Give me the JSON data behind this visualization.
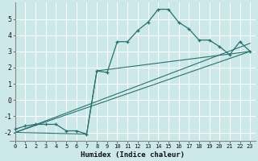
{
  "xlabel": "Humidex (Indice chaleur)",
  "bg_color": "#cce8e8",
  "line_color": "#2a7070",
  "grid_color": "#ffffff",
  "xlim": [
    -0.5,
    23.5
  ],
  "ylim": [
    -2.5,
    6.0
  ],
  "xticks": [
    0,
    1,
    2,
    3,
    4,
    5,
    6,
    7,
    8,
    9,
    10,
    11,
    12,
    13,
    14,
    15,
    16,
    17,
    18,
    19,
    20,
    21,
    22,
    23
  ],
  "yticks": [
    -2,
    -1,
    0,
    1,
    2,
    3,
    4,
    5
  ],
  "main_series": {
    "x": [
      0,
      1,
      2,
      3,
      4,
      5,
      6,
      7,
      8,
      9,
      10,
      11,
      12,
      13,
      14,
      15,
      16,
      17,
      18,
      19,
      20,
      21,
      22,
      23
    ],
    "y": [
      -1.8,
      -1.6,
      -1.5,
      -1.5,
      -1.5,
      -1.9,
      -1.9,
      -2.1,
      1.8,
      1.7,
      3.6,
      3.6,
      4.3,
      4.8,
      5.6,
      5.6,
      4.8,
      4.4,
      3.7,
      3.7,
      3.3,
      2.8,
      3.6,
      3.0
    ]
  },
  "straight_lines": [
    {
      "x": [
        0,
        23
      ],
      "y": [
        -2.0,
        3.0
      ]
    },
    {
      "x": [
        0,
        23
      ],
      "y": [
        -2.0,
        3.5
      ]
    },
    {
      "x": [
        0,
        7,
        8,
        23
      ],
      "y": [
        -2.0,
        -2.1,
        1.8,
        3.0
      ]
    }
  ]
}
